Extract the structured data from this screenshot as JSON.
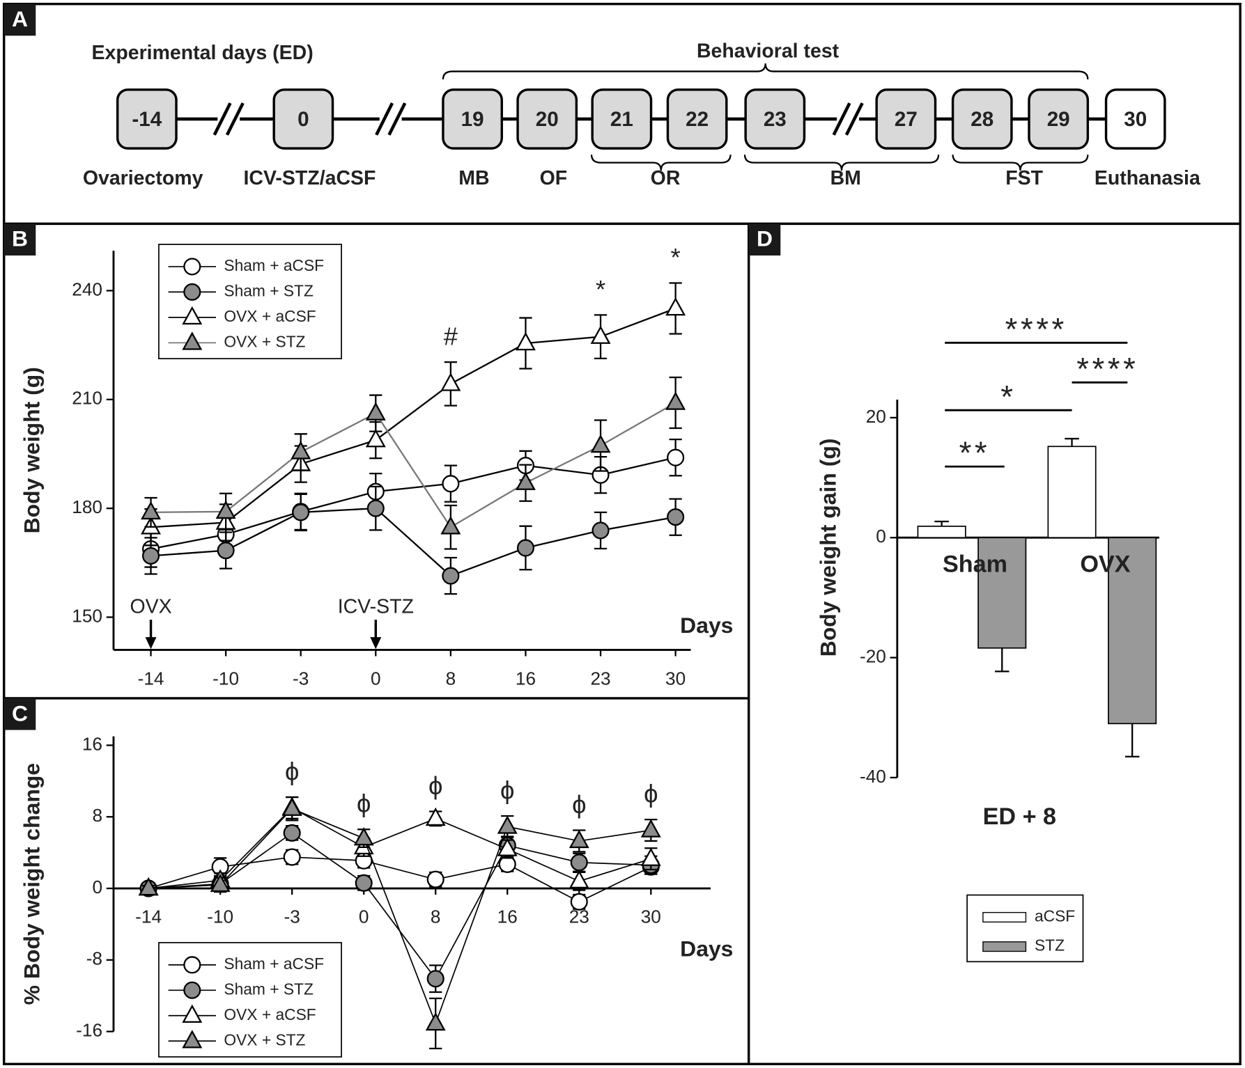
{
  "panel_labels": [
    "A",
    "B",
    "C",
    "D"
  ],
  "timeline": {
    "title": "Experimental days (ED)",
    "behavioral_test": "Behavioral test",
    "days": [
      "-14",
      "0",
      "19",
      "20",
      "21",
      "22",
      "23",
      "27",
      "28",
      "29",
      "30"
    ],
    "events": [
      "Ovariectomy",
      "ICV-STZ/aCSF",
      "MB",
      "OF",
      "OR",
      "BM",
      "FST",
      "Euthanasia"
    ]
  },
  "chart_data": [
    {
      "type": "line",
      "ylabel": "Body weight (g)",
      "xlabel": "Days",
      "categories": [
        "-14",
        "-10",
        "-3",
        "0",
        "8",
        "16",
        "23",
        "30"
      ],
      "ylim": [
        141,
        251
      ],
      "yticks": [
        150,
        180,
        210,
        240
      ],
      "series": [
        {
          "name": "Sham + aCSF",
          "marker": "circle",
          "color": "#ffffff",
          "line_color": "#000000",
          "values": [
            168.8,
            172.8,
            179.1,
            184.6,
            186.8,
            191.8,
            189.2,
            194.0
          ],
          "errors": [
            5,
            5,
            5,
            5,
            5,
            4,
            5,
            5
          ]
        },
        {
          "name": "Sham + STZ",
          "marker": "circle",
          "color": "#8c8c8c",
          "line_color": "#000000",
          "values": [
            166.9,
            168.4,
            178.9,
            180.0,
            161.4,
            169.1,
            173.9,
            177.6
          ],
          "errors": [
            5,
            5,
            5,
            6,
            5,
            6,
            5,
            5
          ]
        },
        {
          "name": "OVX + aCSF",
          "marker": "triangle",
          "color": "#ffffff",
          "line_color": "#000000",
          "values": [
            174.8,
            176.1,
            192.2,
            198.8,
            214.3,
            225.5,
            227.3,
            235.1
          ],
          "errors": [
            5,
            5,
            5,
            5,
            6,
            7,
            6,
            7
          ]
        },
        {
          "name": "OVX + STZ",
          "marker": "triangle",
          "color": "#8c8c8c",
          "line_color": "#777777",
          "values": [
            178.9,
            179.1,
            195.5,
            206.2,
            174.8,
            187.0,
            197.3,
            209.1
          ],
          "errors": [
            4,
            5,
            5,
            5,
            6,
            5,
            7,
            7
          ]
        }
      ],
      "annotations": [
        {
          "x": "8",
          "text": "#"
        },
        {
          "x": "23",
          "text": "*"
        },
        {
          "x": "30",
          "text": "*"
        }
      ],
      "arrows": [
        {
          "x": "-14",
          "text": "OVX"
        },
        {
          "x": "0",
          "text": "ICV-STZ"
        }
      ]
    },
    {
      "type": "line",
      "ylabel": "% Body weight change",
      "xlabel": "Days",
      "categories": [
        "-14",
        "-10",
        "-3",
        "0",
        "8",
        "16",
        "23",
        "30"
      ],
      "ylim": [
        -16,
        17
      ],
      "yticks": [
        -16,
        -8,
        0,
        8,
        16
      ],
      "series": [
        {
          "name": "Sham + aCSF",
          "marker": "circle",
          "color": "#ffffff",
          "line_color": "#000000",
          "values": [
            0,
            2.4,
            3.5,
            3.1,
            1.0,
            2.7,
            -1.5,
            2.4
          ],
          "errors": [
            0.3,
            1,
            0.8,
            0.8,
            0.8,
            0.8,
            0.8,
            0.8
          ]
        },
        {
          "name": "Sham + STZ",
          "marker": "circle",
          "color": "#8c8c8c",
          "line_color": "#000000",
          "values": [
            0,
            0.5,
            6.2,
            0.6,
            -10.1,
            4.8,
            2.9,
            2.6
          ],
          "errors": [
            0.3,
            0.8,
            0.8,
            0.8,
            1.5,
            1,
            1,
            1
          ]
        },
        {
          "name": "OVX + aCSF",
          "marker": "triangle",
          "color": "#ffffff",
          "line_color": "#000000",
          "values": [
            0,
            0.9,
            9.0,
            4.6,
            7.8,
            4.4,
            0.8,
            3.3
          ],
          "errors": [
            0.3,
            0.8,
            1.2,
            1,
            0.8,
            1,
            1,
            1.2
          ]
        },
        {
          "name": "OVX + STZ",
          "marker": "triangle",
          "color": "#8c8c8c",
          "line_color": "#000000",
          "values": [
            0,
            0.4,
            8.9,
            5.6,
            -15.1,
            6.9,
            5.3,
            6.5
          ],
          "errors": [
            0.3,
            0.8,
            1.3,
            1,
            2.8,
            1.2,
            1.2,
            1.2
          ]
        }
      ],
      "annotations": [
        {
          "x": "-3",
          "text": "ϕ"
        },
        {
          "x": "0",
          "text": "ϕ"
        },
        {
          "x": "8",
          "text": "ϕ"
        },
        {
          "x": "16",
          "text": "ϕ"
        },
        {
          "x": "23",
          "text": "ϕ"
        },
        {
          "x": "30",
          "text": "ϕ"
        }
      ]
    },
    {
      "type": "bar",
      "ylabel": "Body weight gain (g)",
      "xlabel": "ED + 8",
      "categories": [
        "Sham",
        "OVX"
      ],
      "ylim": [
        -40,
        23
      ],
      "yticks": [
        -40,
        -20,
        0,
        20
      ],
      "series": [
        {
          "name": "aCSF",
          "color": "#ffffff",
          "values": [
            1.9,
            15.2
          ],
          "errors": [
            0.8,
            1.3
          ]
        },
        {
          "name": "STZ",
          "color": "#999999",
          "values": [
            -18.4,
            -31.0
          ],
          "errors": [
            3.9,
            5.5
          ]
        }
      ],
      "significance": [
        "**",
        "*",
        "****",
        "****"
      ]
    }
  ]
}
